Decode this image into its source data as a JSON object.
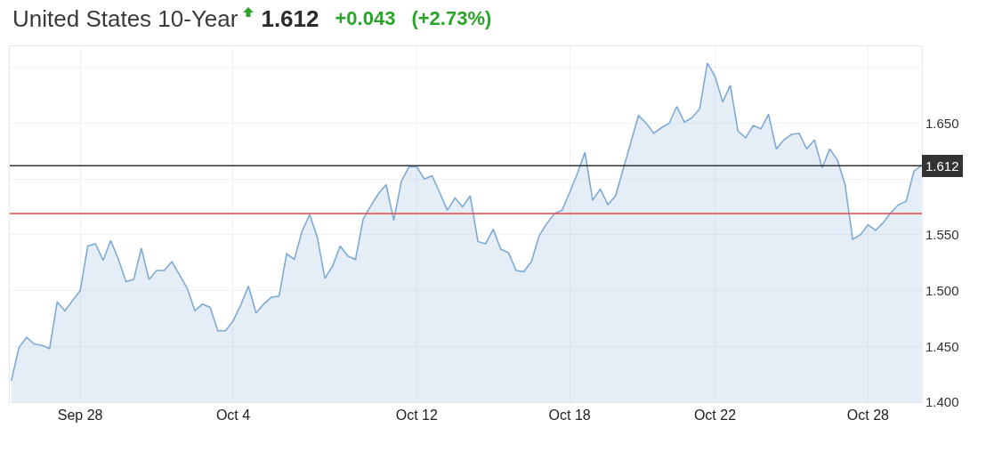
{
  "chart_data": {
    "type": "area",
    "title": "United States 10-Year",
    "annotations": [
      "1.612",
      "+0.043",
      "(+2.73%)"
    ],
    "categories": [
      null,
      null,
      null,
      null,
      null,
      null,
      null,
      null,
      null,
      "Sep 28",
      null,
      null,
      null,
      null,
      null,
      null,
      null,
      null,
      null,
      null,
      null,
      null,
      null,
      null,
      null,
      null,
      null,
      null,
      null,
      "Oct 4",
      null,
      null,
      null,
      null,
      null,
      null,
      null,
      null,
      null,
      null,
      null,
      null,
      null,
      null,
      null,
      null,
      null,
      null,
      null,
      null,
      null,
      null,
      null,
      "Oct 12",
      null,
      null,
      null,
      null,
      null,
      null,
      null,
      null,
      null,
      null,
      null,
      null,
      null,
      null,
      null,
      null,
      null,
      null,
      null,
      "Oct 18",
      null,
      null,
      null,
      null,
      null,
      null,
      null,
      null,
      null,
      null,
      null,
      null,
      null,
      null,
      null,
      null,
      null,
      null,
      "Oct 22",
      null,
      null,
      null,
      null,
      null,
      null,
      null,
      null,
      null,
      null,
      null,
      null,
      null,
      null,
      null,
      null,
      null,
      null,
      null,
      "Oct 28",
      null,
      null,
      null,
      null,
      null,
      null,
      null
    ],
    "series": [
      {
        "color": "#7eaad6",
        "values": [
          1.419,
          1.449,
          1.458,
          1.452,
          1.451,
          1.448,
          1.49,
          1.482,
          1.491,
          1.5,
          1.54,
          1.542,
          1.527,
          1.545,
          1.528,
          1.508,
          1.51,
          1.538,
          1.51,
          1.518,
          1.518,
          1.526,
          1.514,
          1.502,
          1.482,
          1.488,
          1.485,
          1.464,
          1.464,
          1.473,
          1.487,
          1.504,
          1.48,
          1.488,
          1.494,
          1.495,
          1.533,
          1.528,
          1.553,
          1.568,
          1.548,
          1.511,
          1.522,
          1.54,
          1.531,
          1.528,
          1.564,
          1.576,
          1.587,
          1.595,
          1.563,
          1.598,
          1.611,
          1.611,
          1.6,
          1.603,
          1.588,
          1.572,
          1.583,
          1.575,
          1.585,
          1.544,
          1.542,
          1.555,
          1.537,
          1.534,
          1.518,
          1.517,
          1.526,
          1.549,
          1.56,
          1.569,
          1.572,
          1.588,
          1.605,
          1.624,
          1.581,
          1.591,
          1.577,
          1.585,
          1.609,
          1.633,
          1.657,
          1.65,
          1.641,
          1.646,
          1.65,
          1.665,
          1.651,
          1.655,
          1.663,
          1.704,
          1.692,
          1.669,
          1.684,
          1.643,
          1.637,
          1.648,
          1.645,
          1.658,
          1.627,
          1.635,
          1.64,
          1.641,
          1.627,
          1.635,
          1.61,
          1.627,
          1.617,
          1.595,
          1.546,
          1.55,
          1.559,
          1.554,
          1.561,
          1.57,
          1.577,
          1.58,
          1.607,
          1.612
        ]
      }
    ],
    "ylim": [
      1.4,
      1.719
    ],
    "yticks": [
      {
        "value": 1.4,
        "label": "1.400"
      },
      {
        "value": 1.45,
        "label": "1.450"
      },
      {
        "value": 1.5,
        "label": "1.500"
      },
      {
        "value": 1.55,
        "label": "1.550"
      },
      {
        "value": 1.6,
        "label": null
      },
      {
        "value": 1.65,
        "label": "1.650"
      },
      {
        "value": 1.7,
        "label": null
      }
    ],
    "ref_lines": [
      {
        "axis": "y",
        "value": 1.612,
        "label": "1.612",
        "color": "#333333"
      },
      {
        "axis": "y",
        "value": 1.569,
        "color": "#e04848"
      }
    ],
    "grid": true
  }
}
